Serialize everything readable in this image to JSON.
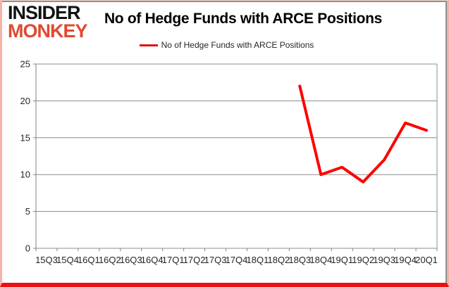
{
  "logo": {
    "line1": "INSIDER",
    "line2": "MONKEY"
  },
  "title": "No of Hedge Funds with ARCE Positions",
  "legend": {
    "label": "No of Hedge Funds with ARCE Positions"
  },
  "colors": {
    "line": "#ff0000",
    "legend_swatch": "#e01111",
    "logo_black": "#121212",
    "logo_red": "#df4a31",
    "grid": "#8c8c8c",
    "axis": "#808080",
    "tick_text": "#262626",
    "border_bottom_red": "#ee1111",
    "border_pink": "#f6b2a8",
    "card_border_gray": "#909090"
  },
  "chart_data": {
    "type": "line",
    "title": "No of Hedge Funds with ARCE Positions",
    "categories": [
      "15Q3",
      "15Q4",
      "16Q1",
      "16Q2",
      "16Q3",
      "16Q4",
      "17Q1",
      "17Q2",
      "17Q3",
      "17Q4",
      "18Q1",
      "18Q2",
      "18Q3",
      "18Q4",
      "19Q1",
      "19Q2",
      "19Q3",
      "19Q4",
      "20Q1"
    ],
    "series": [
      {
        "name": "No of Hedge Funds with ARCE Positions",
        "values": [
          null,
          null,
          null,
          null,
          null,
          null,
          null,
          null,
          null,
          null,
          null,
          null,
          22,
          10,
          11,
          9,
          12,
          17,
          16
        ]
      }
    ],
    "xlabel": "",
    "ylabel": "",
    "ylim": [
      0,
      25
    ],
    "yticks": [
      0,
      5,
      10,
      15,
      20,
      25
    ],
    "grid": true,
    "legend_position": "top-center"
  }
}
